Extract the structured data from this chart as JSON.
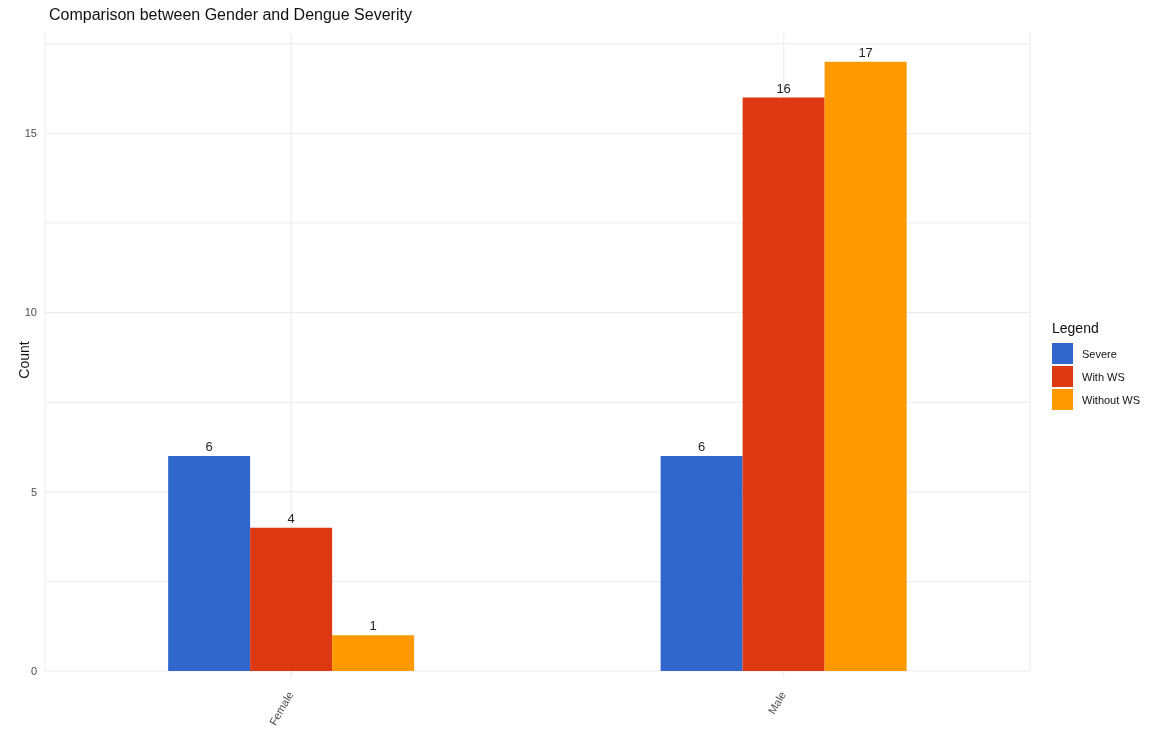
{
  "chart_data": {
    "type": "bar",
    "title": "Comparison between  Gender  and  Dengue Severity",
    "ylabel": "Count",
    "legend_title": "Legend",
    "categories": [
      "Female",
      "Male"
    ],
    "series": [
      {
        "name": "Severe",
        "color": "#3167cc",
        "values": [
          6,
          6
        ]
      },
      {
        "name": "With WS",
        "color": "#dc3912",
        "values": [
          4,
          16
        ]
      },
      {
        "name": "Without WS",
        "color": "#ff9900",
        "values": [
          1,
          17
        ]
      }
    ],
    "ylim": [
      0,
      17.8
    ],
    "yticks": [
      0,
      5,
      10,
      15
    ],
    "grid": true,
    "legend": "right",
    "data_labels": true
  }
}
